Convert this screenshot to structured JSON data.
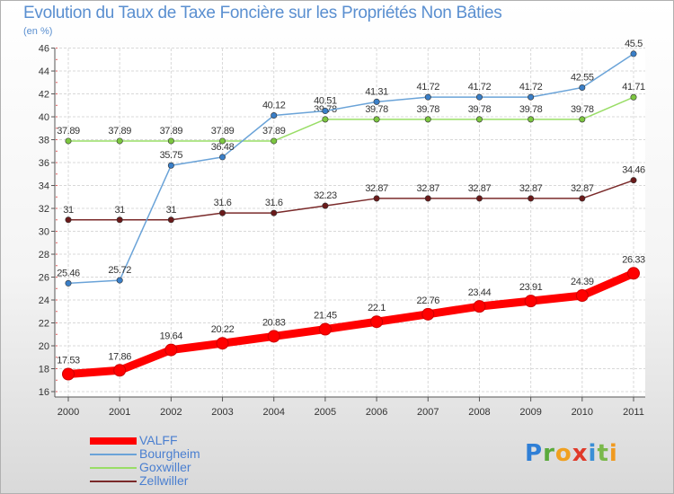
{
  "header": {
    "title": "Evolution du Taux de Taxe Foncière sur les Propriétés Non Bâties",
    "unit": "(en %)"
  },
  "logo": {
    "text": "Proxiti"
  },
  "legend": {
    "items": [
      {
        "label": "VALFF",
        "color": "#ff0000",
        "thickness": "thick"
      },
      {
        "label": "Bourgheim",
        "color": "#6aa3d8",
        "thickness": "thin"
      },
      {
        "label": "Goxwiller",
        "color": "#99dd66",
        "thickness": "thin"
      },
      {
        "label": "Zellwiller",
        "color": "#7a2a2a",
        "thickness": "thin"
      }
    ]
  },
  "chart_data": {
    "type": "line",
    "title": "Evolution du Taux de Taxe Foncière sur les Propriétés Non Bâties",
    "ylabel": "(en %)",
    "xlabel": "",
    "categories": [
      "2000",
      "2001",
      "2002",
      "2003",
      "2004",
      "2005",
      "2006",
      "2007",
      "2008",
      "2009",
      "2010",
      "2011"
    ],
    "ylim": [
      16,
      46
    ],
    "yticks": [
      16,
      18,
      20,
      22,
      24,
      26,
      28,
      30,
      32,
      34,
      36,
      38,
      40,
      42,
      44,
      46
    ],
    "grid": true,
    "legend_position": "bottom-left",
    "series": [
      {
        "name": "VALFF",
        "color": "#ff0000",
        "point_color": "#ff0000",
        "values": [
          17.53,
          17.86,
          19.64,
          20.22,
          20.83,
          21.45,
          22.1,
          22.76,
          23.44,
          23.91,
          24.39,
          26.33
        ],
        "labels": [
          "17.53",
          "17.86",
          "19.64",
          "20.22",
          "20.83",
          "21.45",
          "22.1",
          "22.76",
          "23.44",
          "23.91",
          "24.39",
          "26.33"
        ]
      },
      {
        "name": "Bourgheim",
        "color": "#6aa3d8",
        "point_color": "#3a7fc8",
        "values": [
          25.46,
          25.72,
          35.75,
          36.48,
          40.12,
          40.51,
          41.31,
          41.72,
          41.72,
          41.72,
          42.55,
          45.5
        ],
        "labels": [
          "25.46",
          "25.72",
          "35.75",
          "36.48",
          "40.12",
          "40.51",
          "41.31",
          "41.72",
          "41.72",
          "41.72",
          "42.55",
          "45.5"
        ]
      },
      {
        "name": "Goxwiller",
        "color": "#99dd66",
        "point_color": "#7cc640",
        "values": [
          37.89,
          37.89,
          37.89,
          37.89,
          37.89,
          39.78,
          39.78,
          39.78,
          39.78,
          39.78,
          39.78,
          41.71
        ],
        "labels": [
          "37.89",
          "37.89",
          "37.89",
          "37.89",
          "37.89",
          "39.78",
          "39.78",
          "39.78",
          "39.78",
          "39.78",
          "39.78",
          "41.71"
        ]
      },
      {
        "name": "Zellwiller",
        "color": "#7a2a2a",
        "point_color": "#6a1a1a",
        "values": [
          31,
          31,
          31,
          31.6,
          31.6,
          32.23,
          32.87,
          32.87,
          32.87,
          32.87,
          32.87,
          34.46
        ],
        "labels": [
          "31",
          "31",
          "31",
          "31.6",
          "31.6",
          "32.23",
          "32.87",
          "32.87",
          "32.87",
          "32.87",
          "32.87",
          "34.46"
        ]
      }
    ]
  }
}
